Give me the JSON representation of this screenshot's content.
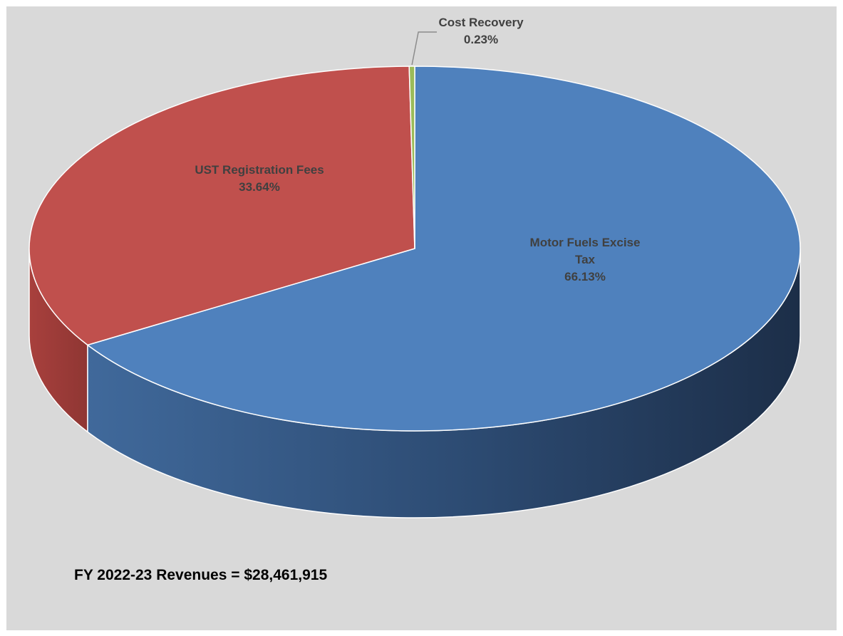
{
  "chart_data": {
    "type": "pie",
    "three_d": true,
    "slices": [
      {
        "name": "Motor Fuels Excise Tax",
        "label_lines": [
          "Motor Fuels Excise",
          "Tax"
        ],
        "percent_label": "66.13%",
        "value": 66.13,
        "color": "#4f81bd"
      },
      {
        "name": "UST Registration Fees",
        "label_lines": [
          "UST Registration Fees"
        ],
        "percent_label": "33.64%",
        "value": 33.64,
        "color": "#c0504d"
      },
      {
        "name": "Cost Recovery",
        "label_lines": [
          "Cost Recovery"
        ],
        "percent_label": "0.23%",
        "value": 0.23,
        "color": "#9bbb59"
      }
    ],
    "legend": "none",
    "background": "#d9d9d9"
  },
  "caption": "FY 2022-23 Revenues = $28,461,915"
}
